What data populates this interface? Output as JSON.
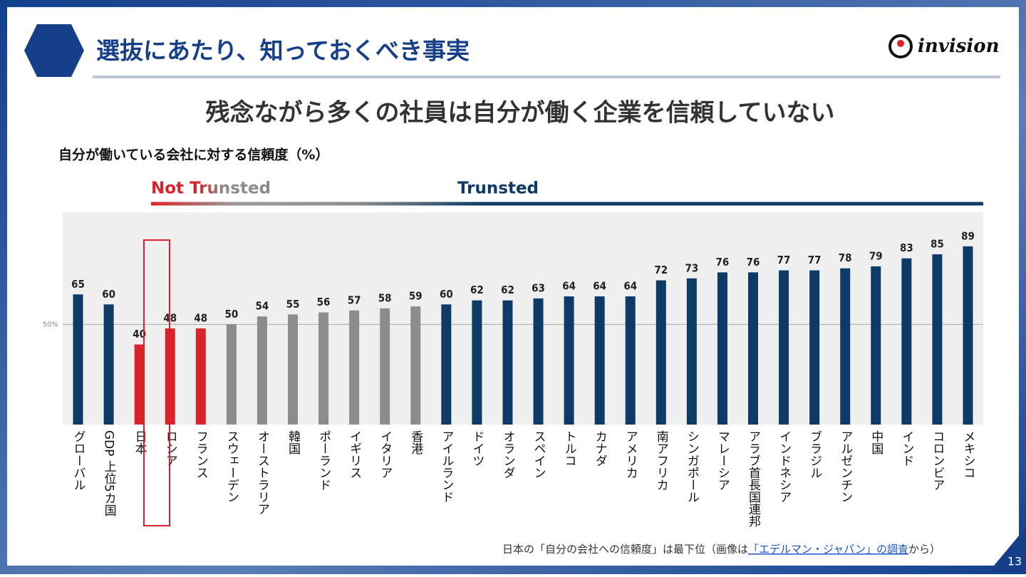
{
  "header": {
    "title": "選抜にあたり、知っておくべき事実",
    "logo": "invision"
  },
  "heading": "残念ながら多くの社員は自分が働く企業を信頼していない",
  "chart_data": {
    "type": "bar",
    "title": "自分が働いている会社に対する信頼度（%）",
    "annotations": [
      "Not Trunsted",
      "Trunsted"
    ],
    "categories": [
      "グローバル",
      "GDP 上位5カ国",
      "日本",
      "ロシア",
      "フランス",
      "スウェーデン",
      "オーストラリア",
      "韓国",
      "ポーランド",
      "イギリス",
      "イタリア",
      "香港",
      "アイルランド",
      "ドイツ",
      "オランダ",
      "スペイン",
      "トルコ",
      "カナダ",
      "アメリカ",
      "南アフリカ",
      "シンガポール",
      "マレーシア",
      "アラブ首長国連邦",
      "インドネシア",
      "ブラジル",
      "アルゼンチン",
      "中国",
      "インド",
      "コロンビア",
      "メキシコ"
    ],
    "values": [
      65,
      60,
      40,
      48,
      48,
      50,
      54,
      55,
      56,
      57,
      58,
      59,
      60,
      62,
      62,
      63,
      64,
      64,
      64,
      72,
      73,
      76,
      76,
      77,
      77,
      78,
      79,
      83,
      85,
      89
    ],
    "colors": [
      "#0d3a66",
      "#0d3a66",
      "#d9232a",
      "#d9232a",
      "#d9232a",
      "#8c8c8c",
      "#8c8c8c",
      "#8c8c8c",
      "#8c8c8c",
      "#8c8c8c",
      "#8c8c8c",
      "#8c8c8c",
      "#0d3a66",
      "#0d3a66",
      "#0d3a66",
      "#0d3a66",
      "#0d3a66",
      "#0d3a66",
      "#0d3a66",
      "#0d3a66",
      "#0d3a66",
      "#0d3a66",
      "#0d3a66",
      "#0d3a66",
      "#0d3a66",
      "#0d3a66",
      "#0d3a66",
      "#0d3a66",
      "#0d3a66",
      "#0d3a66"
    ],
    "ylim": [
      0,
      106
    ],
    "yticks": [
      {
        "value": 50,
        "label": "50%"
      }
    ]
  },
  "footnote": {
    "before": "日本の「自分の会社への信頼度」は最下位（画像は",
    "link": "「エデルマン・ジャパン」の調査",
    "after": "から）"
  },
  "page_number": "13"
}
